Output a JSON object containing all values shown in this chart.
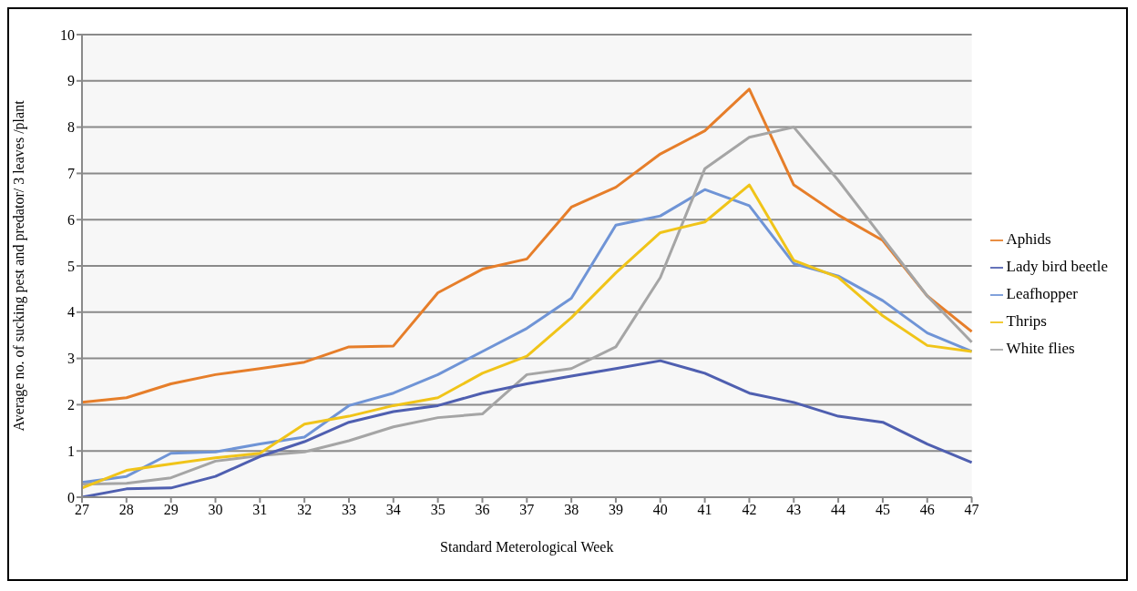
{
  "chart_data": {
    "type": "line",
    "xlabel": "Standard Meterological Week",
    "ylabel": "Average no. of sucking pest and predator/ 3 leaves /plant",
    "categories": [
      "27",
      "28",
      "29",
      "30",
      "31",
      "32",
      "33",
      "34",
      "35",
      "36",
      "37",
      "38",
      "39",
      "40",
      "41",
      "42",
      "43",
      "44",
      "45",
      "46",
      "47"
    ],
    "series": [
      {
        "name": "Leafhopper",
        "color": "#6f94d6",
        "values": [
          0.32,
          0.45,
          0.95,
          0.98,
          1.15,
          1.3,
          1.98,
          2.25,
          2.65,
          3.15,
          3.65,
          4.3,
          5.88,
          6.08,
          6.65,
          6.3,
          5.05,
          4.78,
          4.25,
          3.55,
          3.15
        ]
      },
      {
        "name": "Aphids",
        "color": "#e67e2a",
        "values": [
          2.05,
          2.15,
          2.45,
          2.65,
          2.78,
          2.92,
          3.25,
          3.27,
          4.42,
          4.93,
          5.15,
          6.27,
          6.7,
          7.42,
          7.92,
          8.82,
          6.75,
          6.1,
          5.55,
          4.35,
          3.58
        ]
      },
      {
        "name": "White flies",
        "color": "#a5a5a5",
        "values": [
          0.28,
          0.3,
          0.42,
          0.78,
          0.9,
          0.98,
          1.22,
          1.52,
          1.72,
          1.8,
          2.65,
          2.78,
          3.25,
          4.75,
          7.1,
          7.78,
          8.0,
          6.85,
          5.6,
          4.35,
          3.35
        ]
      },
      {
        "name": "Thrips",
        "color": "#f0c419",
        "values": [
          0.2,
          0.58,
          0.72,
          0.85,
          0.95,
          1.58,
          1.75,
          1.98,
          2.15,
          2.68,
          3.05,
          3.88,
          4.85,
          5.72,
          5.95,
          6.75,
          5.12,
          4.75,
          3.92,
          3.28,
          3.15
        ]
      },
      {
        "name": "Lady bird beetle",
        "color": "#4f5fb0",
        "values": [
          0,
          0.18,
          0.2,
          0.45,
          0.88,
          1.2,
          1.62,
          1.85,
          1.98,
          2.25,
          2.45,
          2.62,
          2.78,
          2.95,
          2.68,
          2.25,
          2.05,
          1.75,
          1.62,
          1.15,
          0.75
        ]
      }
    ],
    "ylim": [
      0,
      10
    ],
    "yticks": [
      0,
      1,
      2,
      3,
      4,
      5,
      6,
      7,
      8,
      9,
      10
    ],
    "grid": "y",
    "legend": "right",
    "marker": "none",
    "line_style": "solid"
  }
}
